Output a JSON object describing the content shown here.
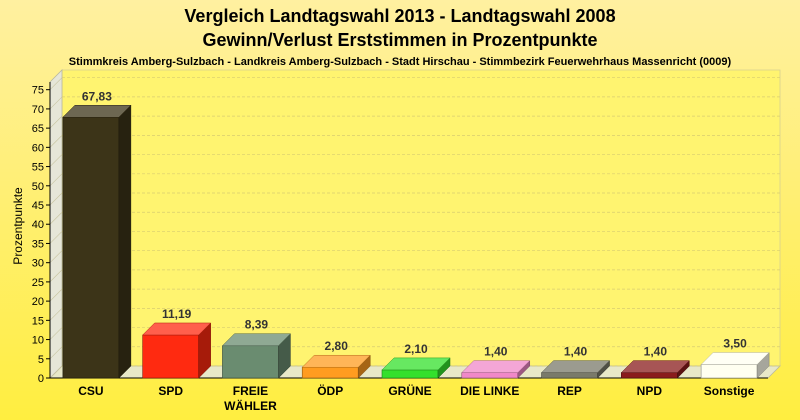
{
  "chart_data": {
    "type": "bar",
    "title": "Vergleich Landtagswahl 2013 - Landtagswahl 2008",
    "subtitle": "Gewinn/Verlust Erststimmen in Prozentpunkte",
    "caption": "Stimmkreis Amberg-Sulzbach - Landkreis Amberg-Sulzbach - Stadt Hirschau - Stimmbezirk Feuerwehrhaus Massenricht (0009)",
    "ylabel": "Prozentpunkte",
    "xlabel": "",
    "ylim": [
      0,
      77
    ],
    "yticks": [
      "0",
      "5",
      "10",
      "15",
      "20",
      "25",
      "30",
      "35",
      "40",
      "45",
      "50",
      "55",
      "60",
      "65",
      "70",
      "75"
    ],
    "grid": true,
    "categories": [
      [
        "CSU"
      ],
      [
        "SPD"
      ],
      [
        "FREIE",
        "WÄHLER"
      ],
      [
        "ÖDP"
      ],
      [
        "GRÜNE"
      ],
      [
        "DIE LINKE"
      ],
      [
        "REP"
      ],
      [
        "NPD"
      ],
      [
        "Sonstige"
      ]
    ],
    "values": [
      67.83,
      11.19,
      8.39,
      2.8,
      2.1,
      1.4,
      1.4,
      1.4,
      3.5
    ],
    "value_labels": [
      "67,83",
      "11,19",
      "8,39",
      "2,80",
      "2,10",
      "1,40",
      "1,40",
      "1,40",
      "3,50"
    ],
    "colors": [
      "#3c3418",
      "#ff2a10",
      "#6a8c70",
      "#ff9c20",
      "#34e02c",
      "#f088c8",
      "#7a7a6a",
      "#8a1c1c",
      "#fffff0"
    ]
  }
}
